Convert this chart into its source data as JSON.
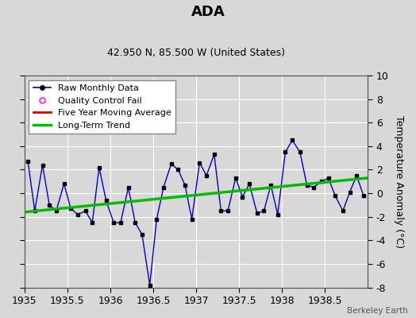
{
  "title": "ADA",
  "subtitle": "42.950 N, 85.500 W (United States)",
  "ylabel": "Temperature Anomaly (°C)",
  "xlim": [
    1935,
    1939
  ],
  "ylim": [
    -8,
    10
  ],
  "xticks": [
    1935,
    1935.5,
    1936,
    1936.5,
    1937,
    1937.5,
    1938,
    1938.5
  ],
  "yticks": [
    -8,
    -6,
    -4,
    -2,
    0,
    2,
    4,
    6,
    8,
    10
  ],
  "background_color": "#d8d8d8",
  "plot_background": "#d8d8d8",
  "raw_x": [
    1935.04,
    1935.12,
    1935.21,
    1935.29,
    1935.37,
    1935.46,
    1935.54,
    1935.62,
    1935.71,
    1935.79,
    1935.87,
    1935.95,
    1936.04,
    1936.12,
    1936.21,
    1936.29,
    1936.37,
    1936.46,
    1936.54,
    1936.62,
    1936.71,
    1936.79,
    1936.87,
    1936.95,
    1937.04,
    1937.12,
    1937.21,
    1937.29,
    1937.37,
    1937.46,
    1937.54,
    1937.62,
    1937.71,
    1937.79,
    1937.87,
    1937.95,
    1938.04,
    1938.12,
    1938.21,
    1938.29,
    1938.37,
    1938.46,
    1938.54,
    1938.62,
    1938.71,
    1938.79,
    1938.87,
    1938.95
  ],
  "raw_y": [
    2.7,
    -1.5,
    2.4,
    -1.0,
    -1.5,
    0.8,
    -1.3,
    -1.8,
    -1.5,
    -2.5,
    2.2,
    -0.6,
    -2.5,
    -2.5,
    0.5,
    -2.5,
    -3.5,
    -7.8,
    -2.2,
    0.5,
    2.5,
    2.0,
    0.7,
    -2.2,
    2.6,
    1.5,
    3.3,
    -1.5,
    -1.5,
    1.3,
    -0.3,
    0.8,
    -1.7,
    -1.5,
    0.7,
    -1.8,
    3.5,
    4.5,
    3.5,
    0.7,
    0.5,
    1.0,
    1.3,
    -0.2,
    -1.5,
    0.1,
    1.5,
    -0.2
  ],
  "trend_x": [
    1935.0,
    1939.0
  ],
  "trend_y": [
    -1.6,
    1.3
  ],
  "raw_color": "#0000cc",
  "raw_marker_color": "#000000",
  "trend_color": "#00bb00",
  "moving_avg_color": "#dd0000",
  "qc_fail_color": "#ff00ff",
  "watermark": "Berkeley Earth",
  "title_fontsize": 13,
  "subtitle_fontsize": 9,
  "tick_fontsize": 9,
  "legend_fontsize": 8
}
